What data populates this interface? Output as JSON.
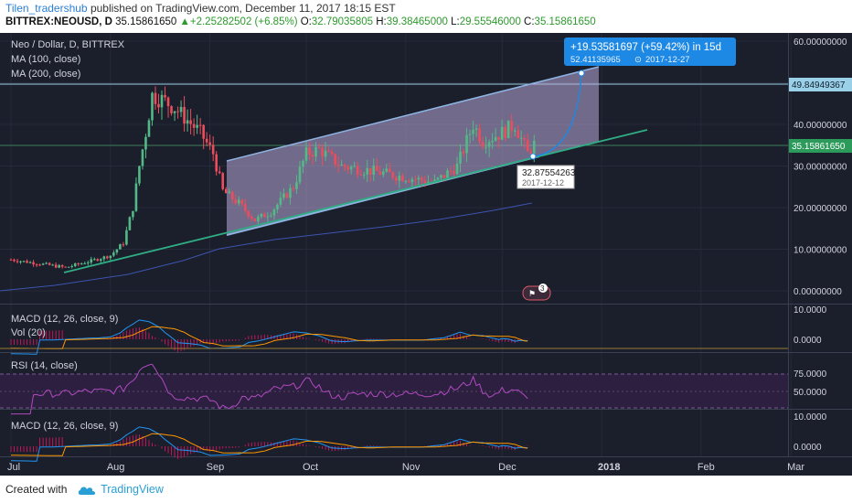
{
  "header": {
    "username": "Tilen_tradershub",
    "published": " published on TradingView.com, December 11, 2017 18:15 EST",
    "symbol": "BITTREX:NEOUSD, D",
    "last": "35.15861650",
    "change": "+2.25282502 (+6.85%)",
    "open_label": "O:",
    "open": "32.79035805",
    "high_label": "H:",
    "high": "39.38465000",
    "low_label": "L:",
    "low": "29.55546000",
    "close_label": "C:",
    "close": "35.15861650"
  },
  "legend": {
    "main": "Neo / Dollar, D, BITTREX",
    "ma100": "MA (100, close)",
    "ma200": "MA (200, close)"
  },
  "panes": {
    "macd1": "MACD (12, 26, close, 9)",
    "vol": "Vol (20)",
    "rsi": "RSI (14, close)",
    "macd2": "MACD (12, 26, close, 9)"
  },
  "badges": {
    "resistance": "49.84949367",
    "last_price": "35.15861650"
  },
  "annotations": {
    "projection_main": "+19.53581697 (+59.42%) in 15d",
    "projection_value": "52.41135965",
    "projection_date": "2017-12-27",
    "point_value": "32.87554263",
    "point_date": "2017-12-12",
    "event_count": "3"
  },
  "colors": {
    "background": "#1b1e2b",
    "channel_fill": "#b8a9d9",
    "channel_line": "#8fb4e3",
    "trendline": "#2fae84",
    "bull": "#53b987",
    "bear": "#eb4d5c",
    "macd": "#2196f3",
    "signal": "#ff9800",
    "rsi": "#9c27b0",
    "projection": "#1e88e5"
  },
  "chart_data": {
    "type": "candlestick",
    "title": "Neo / Dollar, D, BITTREX",
    "x_ticks": [
      "Jul",
      "Aug",
      "Sep",
      "Oct",
      "Nov",
      "Dec",
      "2018",
      "Feb",
      "Mar"
    ],
    "y_ticks": [
      "60.00000000",
      "50.00000000",
      "40.00000000",
      "30.00000000",
      "20.00000000",
      "10.00000000",
      "0.00000000"
    ],
    "ylim": [
      0,
      60
    ],
    "macd_ticks": [
      "10.0000",
      "0.0000"
    ],
    "rsi_ticks": [
      "75.0000",
      "50.0000"
    ],
    "macd2_ticks": [
      "10.0000",
      "0.0000"
    ],
    "resistance": 49.85,
    "last_close": 35.16,
    "price_series": [
      [
        "2017-07-01",
        7.5
      ],
      [
        "2017-07-10",
        6.5
      ],
      [
        "2017-07-18",
        5.6
      ],
      [
        "2017-07-25",
        7.0
      ],
      [
        "2017-08-01",
        8.5
      ],
      [
        "2017-08-05",
        11.5
      ],
      [
        "2017-08-08",
        20.0
      ],
      [
        "2017-08-10",
        30.0
      ],
      [
        "2017-08-12",
        38.0
      ],
      [
        "2017-08-14",
        47.0
      ],
      [
        "2017-08-17",
        46.0
      ],
      [
        "2017-08-21",
        44.0
      ],
      [
        "2017-08-25",
        41.0
      ],
      [
        "2017-08-29",
        38.0
      ],
      [
        "2017-09-02",
        33.0
      ],
      [
        "2017-09-05",
        24.0
      ],
      [
        "2017-09-10",
        21.0
      ],
      [
        "2017-09-15",
        17.0
      ],
      [
        "2017-09-20",
        19.0
      ],
      [
        "2017-09-27",
        25.0
      ],
      [
        "2017-10-01",
        33.0
      ],
      [
        "2017-10-05",
        34.0
      ],
      [
        "2017-10-12",
        30.0
      ],
      [
        "2017-10-20",
        29.0
      ],
      [
        "2017-10-27",
        28.0
      ],
      [
        "2017-11-03",
        27.0
      ],
      [
        "2017-11-10",
        26.0
      ],
      [
        "2017-11-17",
        30.0
      ],
      [
        "2017-11-22",
        40.0
      ],
      [
        "2017-11-25",
        36.0
      ],
      [
        "2017-12-01",
        38.0
      ],
      [
        "2017-12-05",
        40.0
      ],
      [
        "2017-12-09",
        33.0
      ],
      [
        "2017-12-11",
        35.16
      ]
    ],
    "ma200_series": [
      [
        "2017-07-01",
        1.5
      ],
      [
        "2017-08-15",
        4.0
      ],
      [
        "2017-09-15",
        10.0
      ],
      [
        "2017-10-15",
        14.0
      ],
      [
        "2017-11-15",
        17.5
      ],
      [
        "2017-12-11",
        21.5
      ]
    ],
    "channel": {
      "upper": [
        [
          "2017-09-07",
          31.0
        ],
        [
          "2017-12-27",
          53.0
        ]
      ],
      "lower": [
        [
          "2017-09-07",
          14.5
        ],
        [
          "2017-12-27",
          37.0
        ]
      ]
    },
    "trendline": [
      [
        "2017-07-20",
        5.5
      ],
      [
        "2018-01-15",
        39.0
      ]
    ],
    "projection": [
      [
        "2017-12-12",
        32.88
      ],
      [
        "2017-12-27",
        52.41
      ]
    ]
  }
}
